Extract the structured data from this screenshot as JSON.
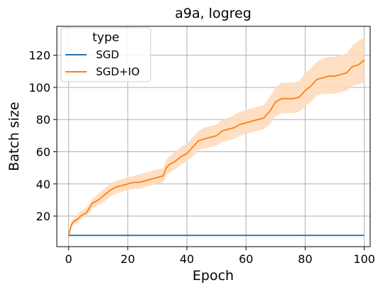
{
  "chart_data": {
    "type": "line",
    "title": "a9a, logreg",
    "xlabel": "Epoch",
    "ylabel": "Batch size",
    "xlim": [
      -4,
      102
    ],
    "ylim": [
      1,
      138
    ],
    "xticks": [
      0,
      20,
      40,
      60,
      80,
      100
    ],
    "yticks": [
      20,
      40,
      60,
      80,
      100,
      120
    ],
    "grid": true,
    "legend": {
      "title": "type",
      "position": "top-left",
      "entries": [
        "SGD",
        "SGD+IO"
      ]
    },
    "series": [
      {
        "name": "SGD",
        "color": "#1f77b4",
        "x": [
          0,
          100
        ],
        "y": [
          8,
          8
        ]
      },
      {
        "name": "SGD+IO",
        "color": "#ff7f0e",
        "band_color": "#ffdcbd",
        "x": [
          0,
          1,
          2,
          3,
          4,
          5,
          6,
          7,
          8,
          9,
          10,
          12,
          14,
          16,
          18,
          20,
          22,
          24,
          26,
          28,
          30,
          32,
          33,
          34,
          36,
          38,
          40,
          42,
          44,
          46,
          48,
          50,
          52,
          54,
          56,
          58,
          60,
          62,
          64,
          66,
          68,
          70,
          72,
          74,
          76,
          78,
          80,
          82,
          84,
          86,
          88,
          90,
          92,
          94,
          96,
          98,
          100
        ],
        "y": [
          8,
          15,
          17,
          18,
          20,
          21,
          22,
          25,
          28,
          29,
          30,
          33,
          36,
          38,
          39,
          40,
          41,
          41,
          42,
          43,
          44,
          45,
          50,
          52,
          54,
          57,
          59,
          63,
          67,
          68,
          69,
          70,
          73,
          74,
          75,
          77,
          78,
          79,
          80,
          81,
          85,
          91,
          93,
          93,
          93,
          94,
          98,
          101,
          105,
          106,
          107,
          107,
          108,
          109,
          113,
          114,
          117
        ],
        "lower": [
          8,
          13,
          15,
          16,
          18,
          19,
          20,
          22,
          25,
          26,
          27,
          29,
          32,
          34,
          35,
          36,
          37,
          37,
          38,
          39,
          40,
          41,
          45,
          47,
          49,
          52,
          54,
          57,
          61,
          62,
          63,
          64,
          66,
          67,
          68,
          70,
          71,
          72,
          73,
          74,
          77,
          82,
          84,
          84,
          84,
          85,
          88,
          91,
          95,
          96,
          96,
          96,
          97,
          98,
          101,
          102,
          103
        ],
        "upper": [
          9,
          17,
          19,
          21,
          23,
          24,
          25,
          28,
          31,
          32,
          34,
          37,
          40,
          42,
          43,
          44,
          45,
          46,
          47,
          48,
          49,
          50,
          55,
          57,
          60,
          63,
          65,
          69,
          73,
          75,
          76,
          77,
          80,
          81,
          83,
          85,
          86,
          87,
          88,
          89,
          94,
          100,
          103,
          103,
          103,
          104,
          109,
          112,
          116,
          118,
          119,
          119,
          120,
          121,
          126,
          129,
          131
        ]
      }
    ]
  }
}
